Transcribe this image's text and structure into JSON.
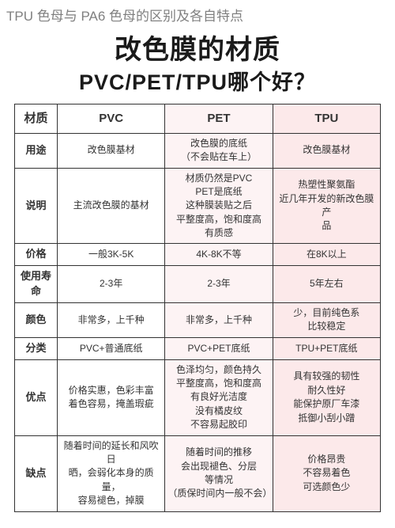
{
  "page_label": "TPU 色母与 PA6 色母的区别及各自特点",
  "title_main": "改色膜的材质",
  "title_sub": "PVC/PET/TPU哪个好？",
  "colors": {
    "tpu_bg": "#fce9ea",
    "pet_bg": "#fdf3f4",
    "pvc_bg": "#ffffff",
    "border": "#333333",
    "label_text": "#808080",
    "title_text": "#1a1a1a"
  },
  "columns": [
    "材质",
    "PVC",
    "PET",
    "TPU"
  ],
  "rows": [
    {
      "label": "用途",
      "pvc": "改色膜基材",
      "pet": "改色膜的底纸\n（不会贴在车上）",
      "tpu": "改色膜基材"
    },
    {
      "label": "说明",
      "pvc": "主流改色膜的基材",
      "pet": "材质仍然是PVC\nPET是底纸\n这种膜装贴之后\n平整度高，饱和度高\n有质感",
      "tpu": "热塑性聚氨酯\n近几年开发的新改色膜产\n品"
    },
    {
      "label": "价格",
      "pvc": "一般3K-5K",
      "pet": "4K-8K不等",
      "tpu": "在8K以上"
    },
    {
      "label": "使用寿命",
      "pvc": "2-3年",
      "pet": "2-3年",
      "tpu": "5年左右"
    },
    {
      "label": "颜色",
      "pvc": "非常多，上千种",
      "pet": "非常多，上千种",
      "tpu": "少，目前纯色系\n比较稳定"
    },
    {
      "label": "分类",
      "pvc": "PVC+普通底纸",
      "pet": "PVC+PET底纸",
      "tpu": "TPU+PET底纸"
    },
    {
      "label": "优点",
      "pvc": "价格实惠，色彩丰富\n着色容易，掩盖瑕疵",
      "pet": "色泽均匀，颜色持久\n平整度高，饱和度高\n有良好光洁度\n没有橘皮纹\n不容易起胶印",
      "tpu": "具有较强的韧性\n耐久性好\n能保护原厂车漆\n抵御小刮小蹭"
    },
    {
      "label": "缺点",
      "pvc": "随着时间的延长和风吹日\n晒，会弱化本身的质量，\n容易褪色，掉膜",
      "pet": "随着时间的推移\n会出现褪色、分层\n等情况\n（质保时间内一般不会）",
      "tpu": "价格昂贵\n不容易着色\n可选颜色少"
    }
  ]
}
